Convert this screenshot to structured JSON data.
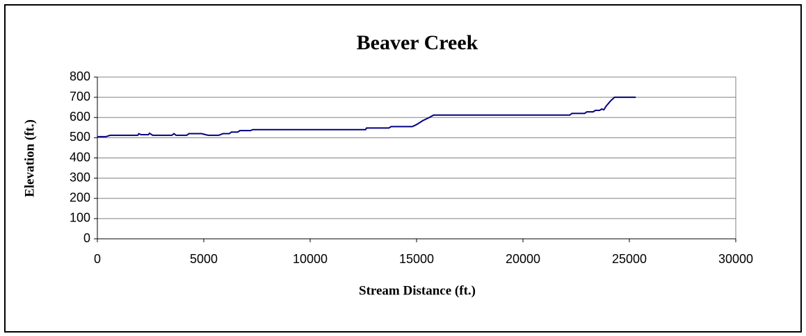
{
  "chart_data": {
    "type": "line",
    "title": "Beaver Creek",
    "x_label": "Stream Distance (ft.)",
    "y_label": "Elevation (ft.)",
    "x": [
      0,
      400,
      600,
      1900,
      1950,
      2050,
      2400,
      2450,
      2600,
      3500,
      3600,
      3700,
      4200,
      4300,
      4900,
      5200,
      5700,
      5900,
      6200,
      6300,
      6600,
      6700,
      7200,
      7300,
      12600,
      12650,
      13700,
      13800,
      14800,
      15000,
      15300,
      15600,
      15800,
      22200,
      22300,
      22900,
      23000,
      23300,
      23400,
      23600,
      23700,
      23800,
      23900,
      24100,
      24300,
      25300
    ],
    "series": [
      {
        "name": "Elevation",
        "color": "#000080",
        "values": [
          505,
          505,
          512,
          512,
          520,
          515,
          515,
          522,
          512,
          512,
          520,
          512,
          512,
          520,
          520,
          512,
          512,
          520,
          520,
          528,
          528,
          535,
          535,
          540,
          540,
          548,
          548,
          555,
          555,
          565,
          585,
          600,
          612,
          612,
          620,
          620,
          628,
          628,
          635,
          635,
          642,
          638,
          655,
          680,
          700,
          700
        ]
      }
    ],
    "xlim": [
      0,
      30000
    ],
    "xticks": [
      0,
      5000,
      10000,
      15000,
      20000,
      25000,
      30000
    ],
    "ylim": [
      0,
      800
    ],
    "yticks": [
      0,
      100,
      200,
      300,
      400,
      500,
      600,
      700,
      800
    ],
    "grid": true
  }
}
